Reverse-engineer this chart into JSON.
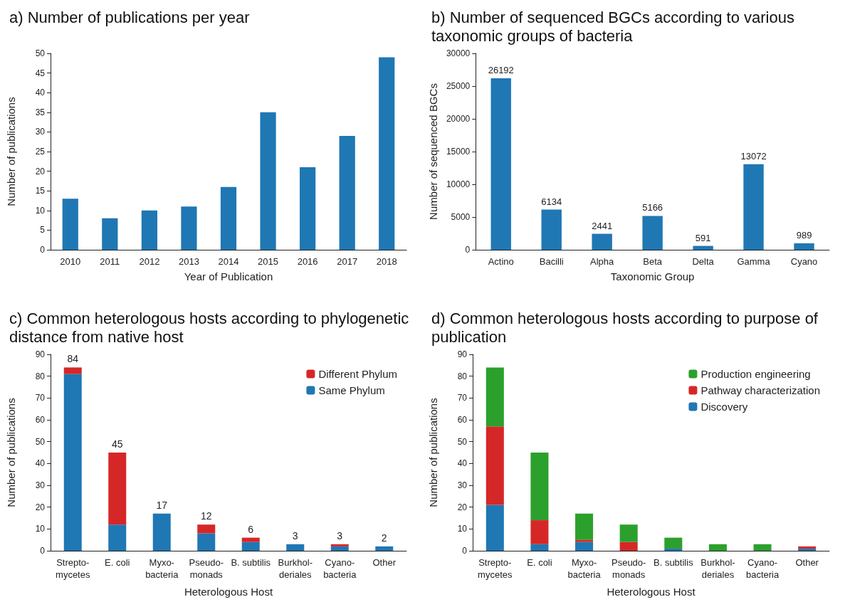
{
  "chart_data": [
    {
      "type": "bar",
      "title": "a) Number of publications per year",
      "xlabel": "Year of Publication",
      "ylabel": "Number of publications",
      "categories": [
        "2010",
        "2011",
        "2012",
        "2013",
        "2014",
        "2015",
        "2016",
        "2017",
        "2018"
      ],
      "values": [
        13,
        8,
        10,
        11,
        16,
        35,
        21,
        29,
        49
      ],
      "color": "#1f77b4",
      "ylim": [
        0,
        50
      ],
      "yticks": [
        0,
        5,
        10,
        15,
        20,
        25,
        30,
        35,
        40,
        45,
        50
      ],
      "grid": false,
      "legend": false
    },
    {
      "type": "bar",
      "title": "b) Number of sequenced BGCs according to various taxonomic groups of bacteria",
      "xlabel": "Taxonomic Group",
      "ylabel": "Number of sequenced BGCs",
      "categories": [
        "Actino",
        "Bacilli",
        "Alpha",
        "Beta",
        "Delta",
        "Gamma",
        "Cyano"
      ],
      "values": [
        26192,
        6134,
        2441,
        5166,
        591,
        13072,
        989
      ],
      "color": "#1f77b4",
      "data_labels": true,
      "ylim": [
        0,
        30000
      ],
      "yticks": [
        0,
        5000,
        10000,
        15000,
        20000,
        25000,
        30000
      ],
      "grid": false,
      "legend": false
    },
    {
      "type": "bar",
      "title": "c) Common heterologous hosts according to phylogenetic distance from native host",
      "xlabel": "Heterologous Host",
      "ylabel": "Number of publications",
      "categories": [
        "Strepto-\nmycetes",
        "E. coli",
        "Myxo-\nbacteria",
        "Pseudo-\nmonads",
        "B. subtilis",
        "Burkhol-\nderiales",
        "Cyano-\nbacteria",
        "Other"
      ],
      "stacked": true,
      "series": [
        {
          "name": "Same Phylum",
          "color": "#1f77b4",
          "values": [
            81,
            12,
            17,
            8,
            4,
            3,
            2,
            2
          ]
        },
        {
          "name": "Different Phylum",
          "color": "#d62728",
          "values": [
            3,
            33,
            0,
            4,
            2,
            0,
            1,
            0
          ]
        }
      ],
      "totals": [
        "84",
        "45",
        "17",
        "12",
        "6",
        "3",
        "3",
        "2"
      ],
      "ylim": [
        0,
        90
      ],
      "yticks": [
        0,
        10,
        20,
        30,
        40,
        50,
        60,
        70,
        80,
        90
      ],
      "grid": false,
      "legend": "top right"
    },
    {
      "type": "bar",
      "title": "d) Common heterologous hosts according to purpose of publication",
      "xlabel": "Heterologous Host",
      "ylabel": "Number of publications",
      "categories": [
        "Strepto-\nmycetes",
        "E. coli",
        "Myxo-\nbacteria",
        "Pseudo-\nmonads",
        "B. subtilis",
        "Burkhol-\nderiales",
        "Cyano-\nbacteria",
        "Other"
      ],
      "stacked": true,
      "series": [
        {
          "name": "Discovery",
          "color": "#1f77b4",
          "values": [
            21,
            3,
            4,
            0,
            1,
            0,
            0,
            1
          ]
        },
        {
          "name": "Pathway characterization",
          "color": "#d62728",
          "values": [
            36,
            11,
            1,
            4,
            0,
            0,
            0,
            1
          ]
        },
        {
          "name": "Production engineering",
          "color": "#2ca02c",
          "values": [
            27,
            31,
            12,
            8,
            5,
            3,
            3,
            0
          ]
        }
      ],
      "ylim": [
        0,
        90
      ],
      "yticks": [
        0,
        10,
        20,
        30,
        40,
        50,
        60,
        70,
        80,
        90
      ],
      "grid": false,
      "legend": "top right"
    }
  ]
}
